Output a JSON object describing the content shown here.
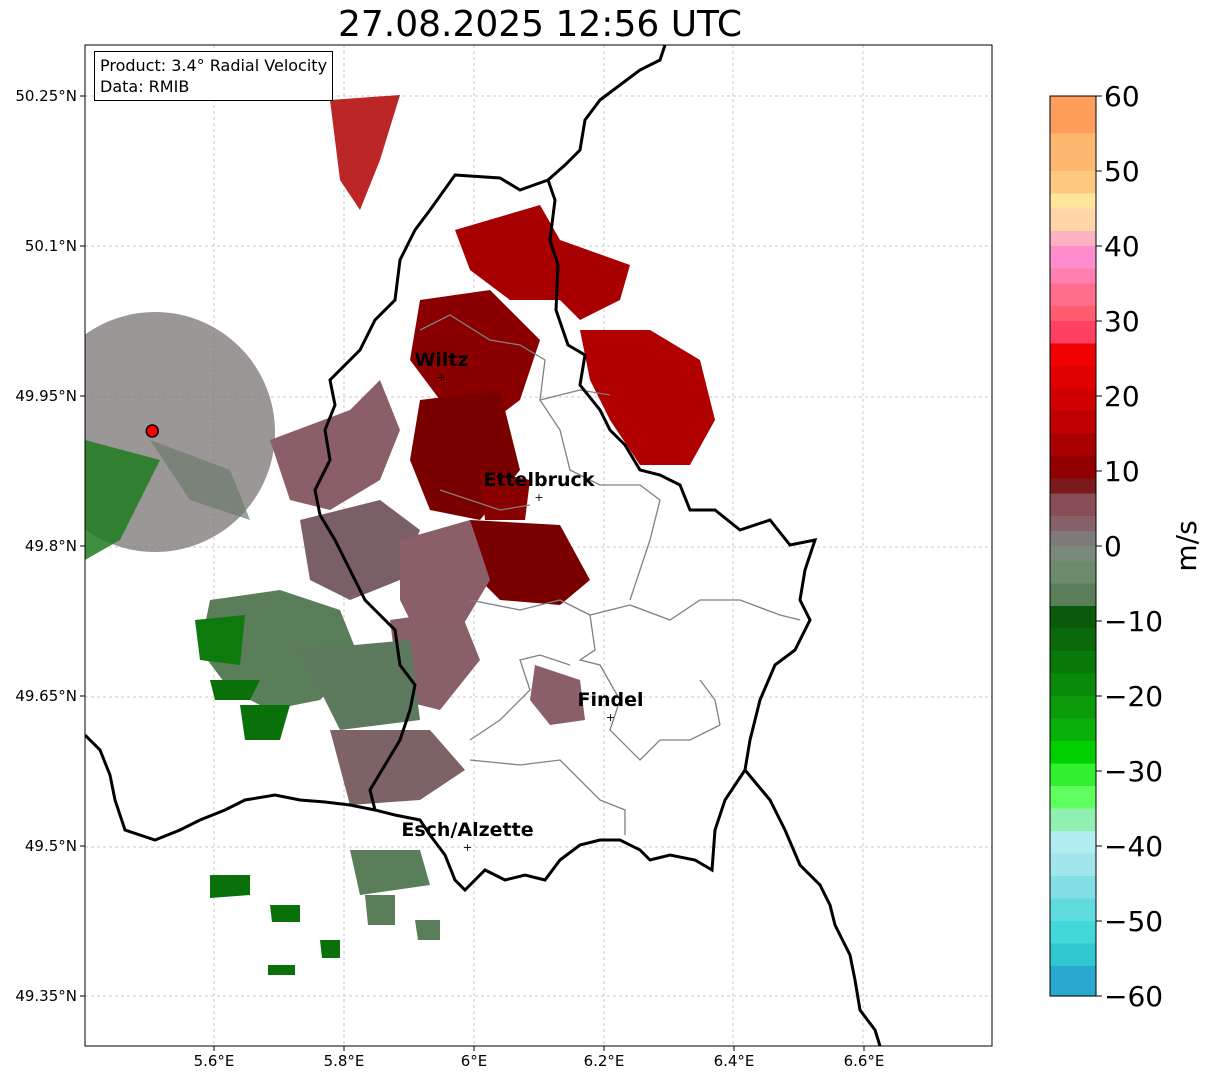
{
  "title": "27.08.2025 12:56 UTC",
  "info": {
    "product": "Product: 3.4° Radial Velocity",
    "source": "Data: RMIB"
  },
  "lat_ticks": [
    "50.25°N",
    "50.1°N",
    "49.95°N",
    "49.8°N",
    "49.65°N",
    "49.5°N",
    "49.35°N"
  ],
  "lon_ticks": [
    "5.6°E",
    "5.8°E",
    "6°E",
    "6.2°E",
    "6.4°E",
    "6.6°E"
  ],
  "cities": [
    {
      "name": "Wiltz",
      "lon": 5.95,
      "lat": 49.97
    },
    {
      "name": "Ettelbruck",
      "lon": 6.1,
      "lat": 49.85
    },
    {
      "name": "Findel",
      "lon": 6.21,
      "lat": 49.63
    },
    {
      "name": "Esch/Alzette",
      "lon": 5.99,
      "lat": 49.5
    }
  ],
  "radar_site": {
    "lon": 5.505,
    "lat": 49.915
  },
  "colorbar": {
    "label": "m/s",
    "ticks": [
      "60",
      "50",
      "40",
      "30",
      "20",
      "10",
      "0",
      "−10",
      "−20",
      "−30",
      "−40",
      "−50",
      "−60"
    ],
    "range": [
      -60,
      60
    ]
  },
  "colors": {
    "border": "#000000",
    "admin": "#808080",
    "grid": "#c8c8c8",
    "radar_site": "#ff0000"
  }
}
